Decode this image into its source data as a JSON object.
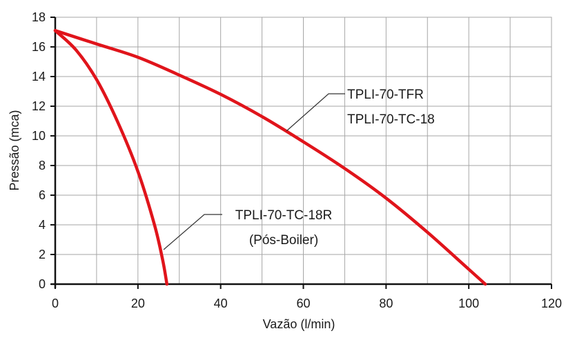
{
  "chart_data": {
    "type": "line",
    "xlabel": "Vazão (l/min)",
    "ylabel": "Pressão (mca)",
    "xlim": [
      0,
      120
    ],
    "ylim": [
      0,
      18
    ],
    "xticks": [
      "0",
      "20",
      "40",
      "60",
      "80",
      "100",
      "120"
    ],
    "yticks": [
      "0",
      "2",
      "4",
      "6",
      "8",
      "10",
      "12",
      "14",
      "16",
      "18"
    ],
    "grid": true,
    "line_color": "#e0141b",
    "series": [
      {
        "name": "TPLI-70-TFR / TPLI-70-TC-18",
        "x": [
          0,
          10,
          20,
          30,
          40,
          50,
          60,
          70,
          80,
          90,
          100,
          104
        ],
        "y": [
          17.1,
          16.2,
          15.3,
          14.1,
          12.8,
          11.3,
          9.6,
          7.8,
          5.8,
          3.5,
          1.0,
          0
        ]
      },
      {
        "name": "TPLI-70-TC-18R (Pós-Boiler)",
        "x": [
          0,
          5,
          10,
          15,
          20,
          24,
          26,
          27
        ],
        "y": [
          17.1,
          15.8,
          13.8,
          11.0,
          7.6,
          4.0,
          1.6,
          0
        ]
      }
    ],
    "annotations": [
      {
        "lines": [
          "TPLI-70-TFR",
          "TPLI-70-TC-18"
        ]
      },
      {
        "lines": [
          "TPLI-70-TC-18R",
          "(Pós-Boiler)"
        ]
      }
    ]
  }
}
